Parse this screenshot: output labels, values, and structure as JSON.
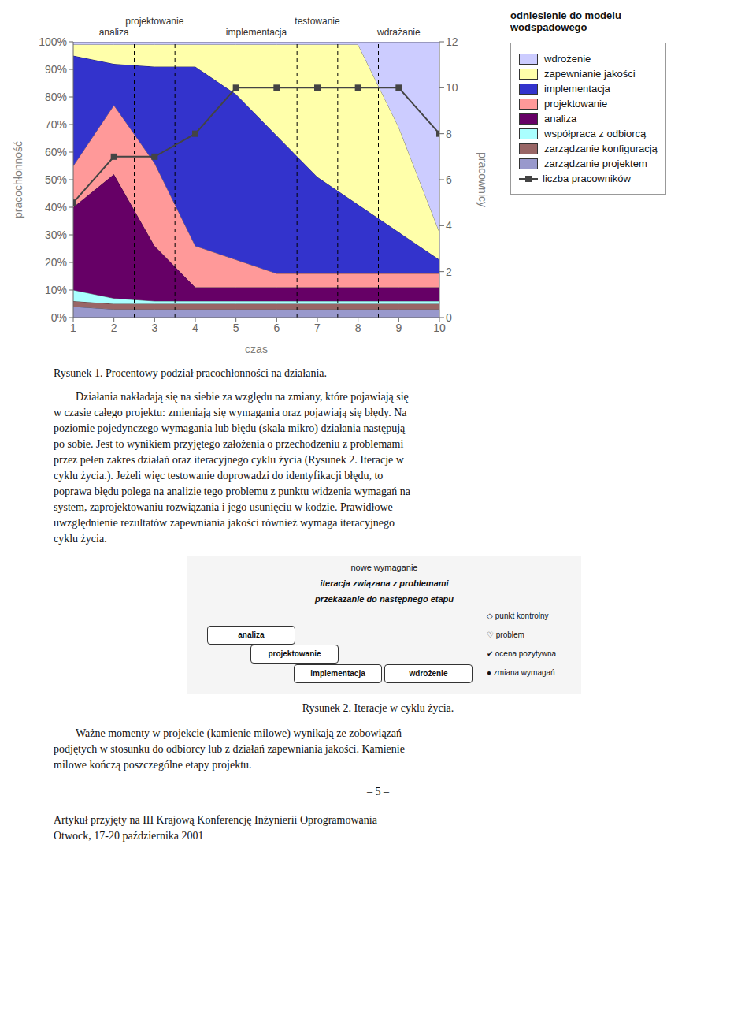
{
  "chart_data": {
    "type": "area",
    "stacked": true,
    "title": "odniesienie do modelu wodspadowego",
    "x_label": "czas",
    "y_label": "pracochłonność",
    "y2_label": "pracownicy",
    "x": [
      1,
      2,
      3,
      4,
      5,
      6,
      7,
      8,
      9,
      10
    ],
    "xlim": [
      1,
      10
    ],
    "xticks": [
      1,
      2,
      3,
      4,
      5,
      6,
      7,
      8,
      9,
      10
    ],
    "ylim": [
      0,
      1.0
    ],
    "yticks": [
      {
        "value": 0.0,
        "label": "0%"
      },
      {
        "value": 0.1,
        "label": "10%"
      },
      {
        "value": 0.2,
        "label": "20%"
      },
      {
        "value": 0.3,
        "label": "30%"
      },
      {
        "value": 0.4,
        "label": "40%"
      },
      {
        "value": 0.5,
        "label": "50%"
      },
      {
        "value": 0.6,
        "label": "60%"
      },
      {
        "value": 0.7,
        "label": "70%"
      },
      {
        "value": 0.8,
        "label": "80%"
      },
      {
        "value": 0.9,
        "label": "90%"
      },
      {
        "value": 1.0,
        "label": "100%"
      }
    ],
    "y2lim": [
      0,
      12
    ],
    "y2ticks": [
      0,
      2,
      4,
      6,
      8,
      10,
      12
    ],
    "grid": false,
    "legend": "right",
    "series": [
      {
        "name": "zarządzanie projektem",
        "type": "area",
        "color": "#9999cc",
        "values": [
          0.04,
          0.03,
          0.03,
          0.03,
          0.03,
          0.03,
          0.03,
          0.03,
          0.03,
          0.03
        ]
      },
      {
        "name": "zarządzanie konfiguracją",
        "type": "area",
        "color": "#996666",
        "values": [
          0.02,
          0.02,
          0.02,
          0.02,
          0.02,
          0.02,
          0.02,
          0.02,
          0.02,
          0.02
        ]
      },
      {
        "name": "współpraca z odbiorcą",
        "type": "area",
        "color": "#aaffff",
        "values": [
          0.04,
          0.02,
          0.01,
          0.01,
          0.01,
          0.01,
          0.01,
          0.01,
          0.01,
          0.01
        ]
      },
      {
        "name": "analiza",
        "type": "area",
        "color": "#660066",
        "values": [
          0.3,
          0.45,
          0.2,
          0.05,
          0.05,
          0.05,
          0.05,
          0.05,
          0.05,
          0.05
        ]
      },
      {
        "name": "projektowanie",
        "type": "area",
        "color": "#ff9999",
        "values": [
          0.15,
          0.25,
          0.3,
          0.15,
          0.1,
          0.05,
          0.05,
          0.05,
          0.05,
          0.05
        ]
      },
      {
        "name": "implementacja",
        "type": "area",
        "color": "#3333cc",
        "values": [
          0.4,
          0.15,
          0.35,
          0.65,
          0.6,
          0.5,
          0.35,
          0.25,
          0.15,
          0.05
        ]
      },
      {
        "name": "zapewnianie jakości",
        "type": "area",
        "color": "#ffffaa",
        "values": [
          0.04,
          0.07,
          0.08,
          0.08,
          0.18,
          0.33,
          0.48,
          0.58,
          0.38,
          0.1
        ]
      },
      {
        "name": "wdrożenie",
        "type": "area",
        "color": "#ccccff",
        "values": [
          0.01,
          0.01,
          0.01,
          0.01,
          0.01,
          0.01,
          0.01,
          0.01,
          0.31,
          0.69
        ]
      },
      {
        "name": "liczba pracowników",
        "type": "line",
        "axis": "y2",
        "marker": "square",
        "color": "#444444",
        "values": [
          5,
          7,
          7,
          8,
          10,
          10,
          10,
          10,
          10,
          8
        ]
      }
    ],
    "vlines": [
      2.5,
      3.5,
      6.5,
      7.5,
      8.5
    ],
    "annotations": [
      {
        "x": 2.0,
        "text": "analiza"
      },
      {
        "x": 3.0,
        "text": "projektowanie"
      },
      {
        "x": 5.5,
        "text": "implementacja"
      },
      {
        "x": 7.0,
        "text": "testowanie"
      },
      {
        "x": 9.0,
        "text": "wdrażanie"
      }
    ],
    "page_text": {
      "caption": "Rysunek 1. Procentowy podział pracochłonności na działania.",
      "paragraph": [
        "Działania nakładają się na siebie za względu na zmiany, które pojawiają się",
        "w czasie całego projektu: zmieniają się wymagania oraz pojawiają się błędy. Na",
        "poziomie pojedynczego wymagania lub błędu (skala mikro) działania następują",
        "po sobie. Jest to wynikiem przyjętego założenia o przechodzeniu z problemami",
        "przez pełen zakres działań oraz iteracyjnego cyklu życia (Rysunek 2. Iteracje w",
        "cyklu życia.). Jeżeli więc testowanie doprowadzi do identyfikacji błędu, to",
        "poprawa błędu polega na analizie tego problemu z punktu widzenia wymagań na",
        "system, zaprojektowaniu rozwiązania i jego usunięciu w kodzie. Prawidłowe",
        "uwzględnienie rezultatów zapewniania jakości również wymaga iteracyjnego",
        "cyklu życia."
      ],
      "diagram_notes": [
        "nowe wymaganie",
        "iteracja związana z problemami",
        "przekazanie do następnego etapu"
      ],
      "diagram_boxes": [
        "analiza",
        "projektowanie",
        "implementacja",
        "wdrożenie"
      ],
      "diagram_legend": [
        "◇ punkt kontrolny",
        "♡ problem",
        "✔ ocena pozytywna",
        "● zmiana wymagań"
      ],
      "diagram_caption": "Rysunek 2. Iteracje w cyklu życia.",
      "footer": [
        "Ważne momenty w projekcie (kamienie milowe) wynikają ze zobowiązań",
        "podjętych w stosunku do odbiorcy lub z działań zapewniania jakości. Kamienie",
        "milowe kończą poszczególne etapy projektu."
      ],
      "page_number": "– 5 –",
      "conference": [
        "Artykuł przyjęty na III Krajową Konferencję Inżynierii Oprogramowania",
        "Otwock, 17-20 października 2001"
      ]
    }
  }
}
